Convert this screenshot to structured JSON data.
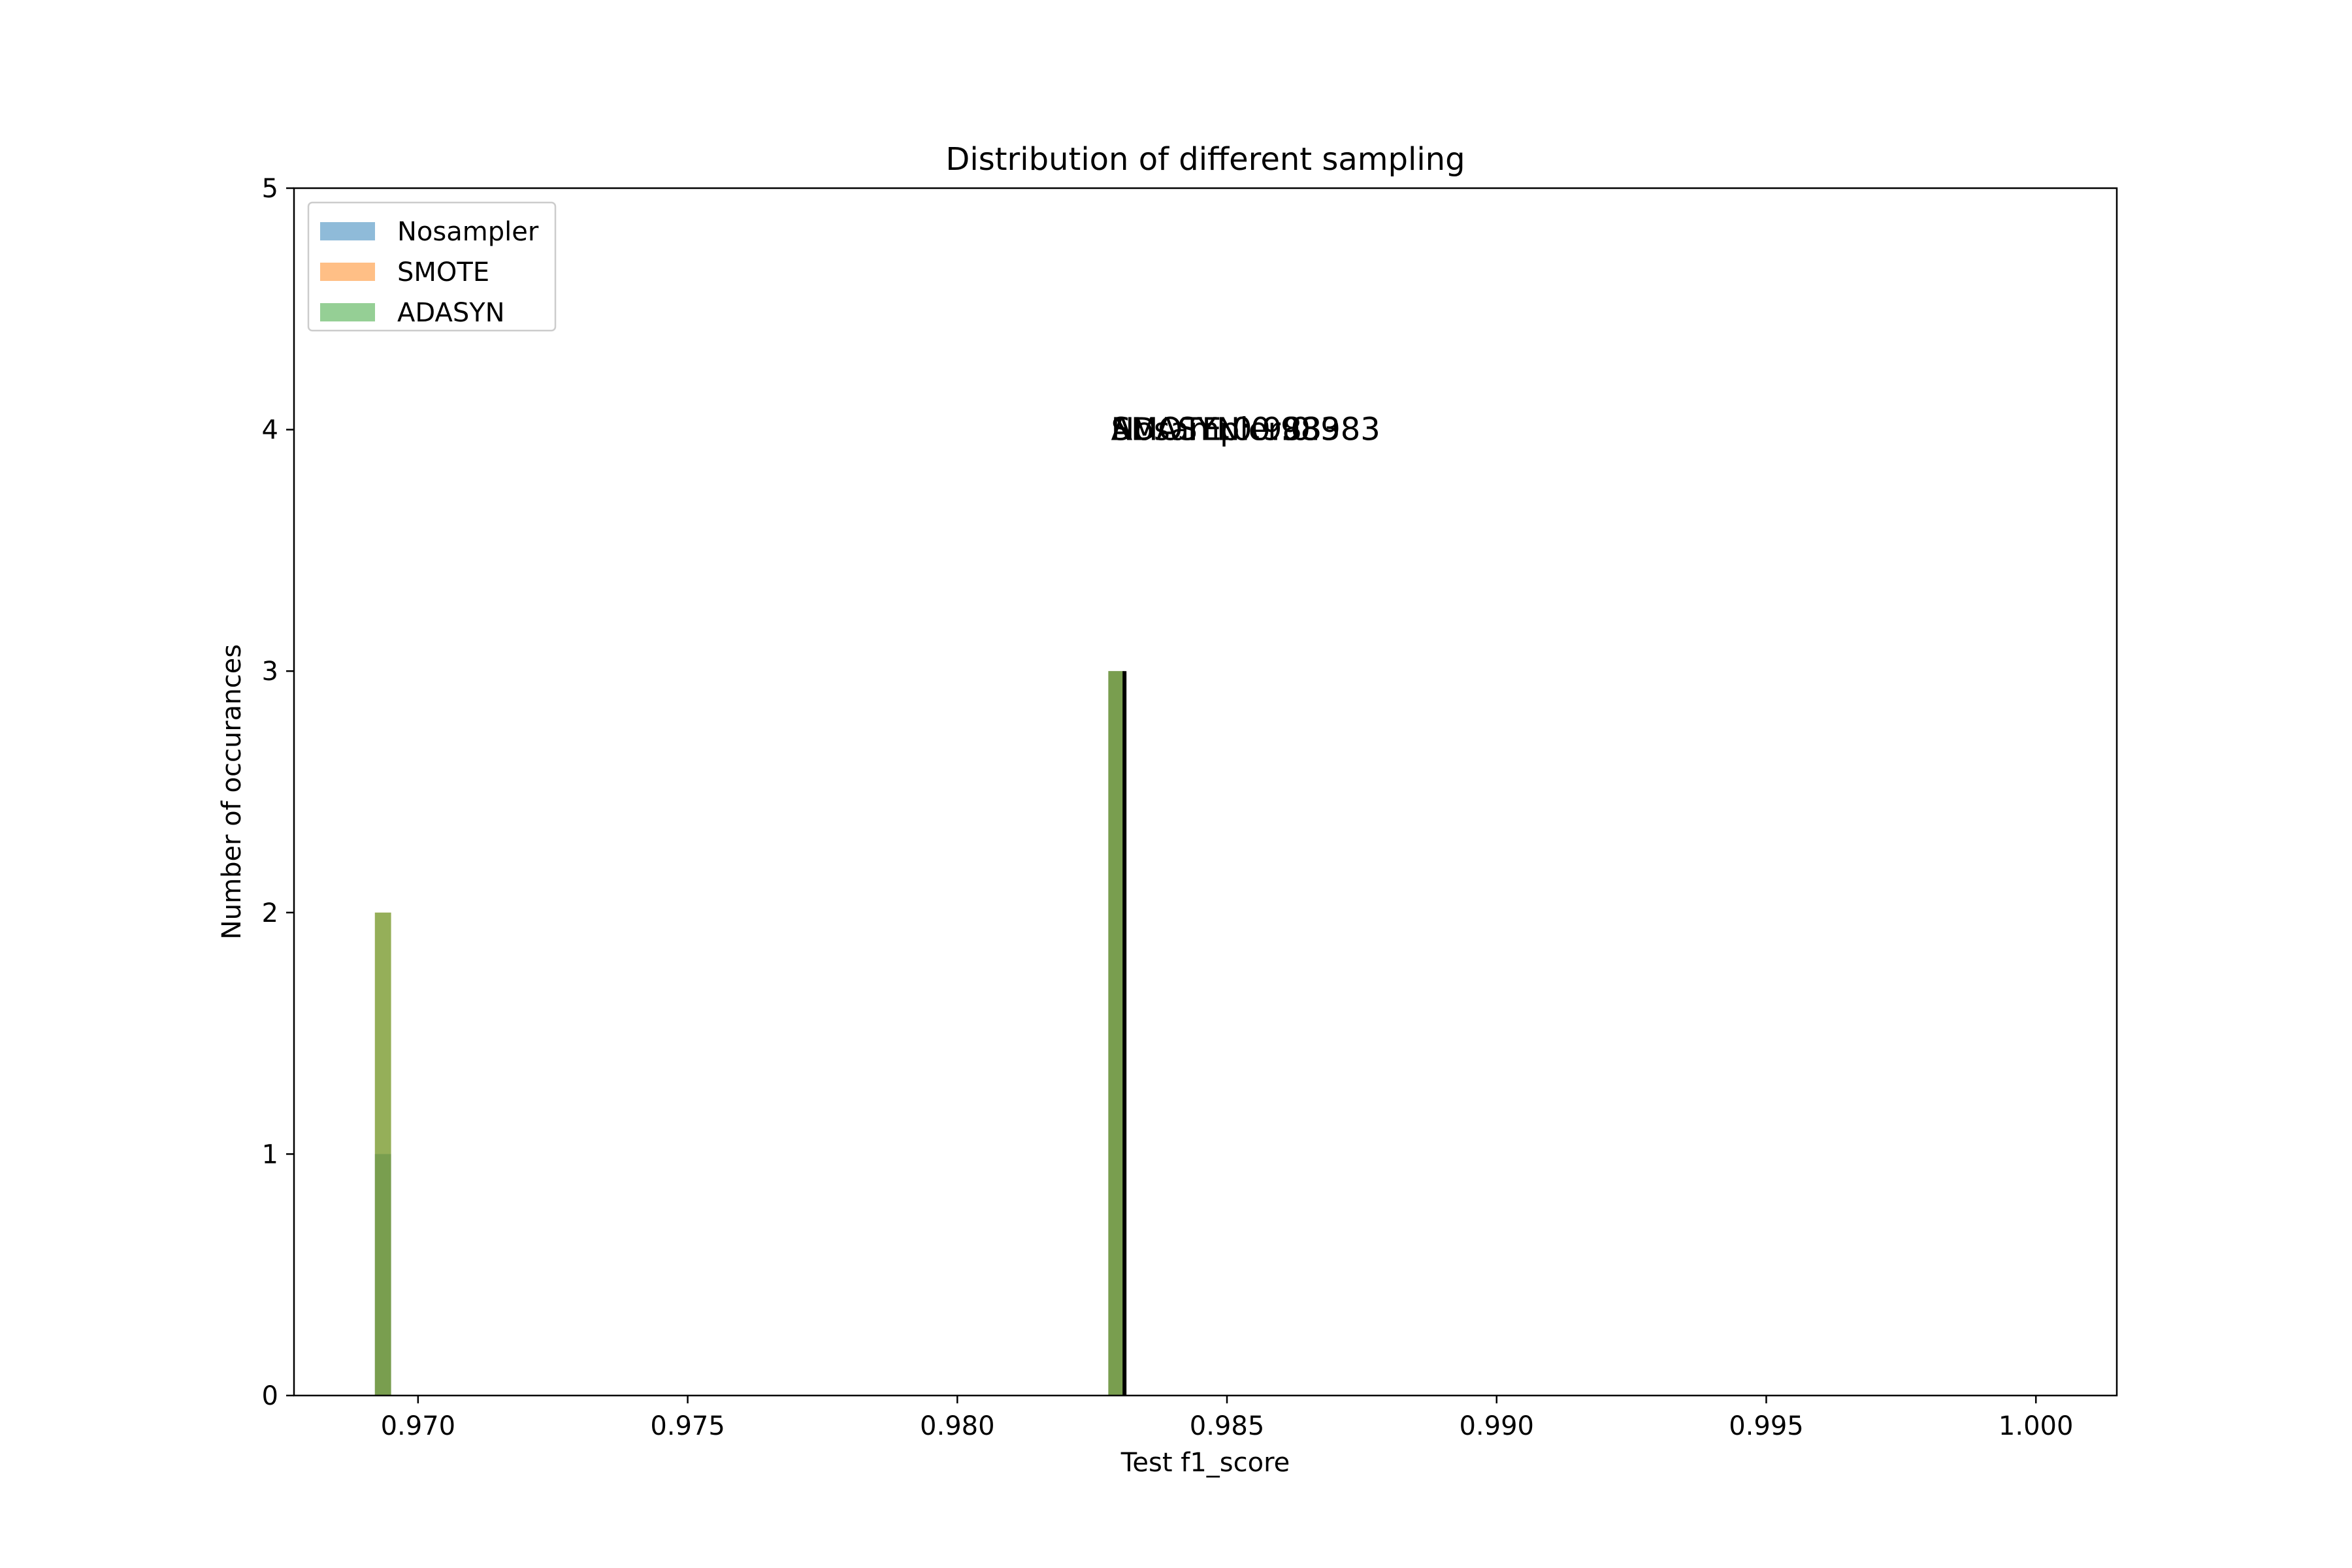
{
  "chart_data": {
    "type": "bar",
    "title": "Distribution of different sampling",
    "xlabel": "Test f1_score",
    "ylabel": "Number of occurances",
    "xlim": [
      0.9677,
      1.0015
    ],
    "ylim": [
      0,
      5
    ],
    "x_ticks": [
      "0.970",
      "0.975",
      "0.980",
      "0.985",
      "0.990",
      "0.995",
      "1.000"
    ],
    "y_ticks": [
      "0",
      "1",
      "2",
      "3",
      "4",
      "5"
    ],
    "grid": false,
    "legend_placement": "top-left",
    "bin_width": 0.0003,
    "series": [
      {
        "name": "Nosampler",
        "color": "#1f77b4",
        "opacity": 0.5,
        "bins": [
          {
            "x": 0.96935,
            "count": 1
          },
          {
            "x": 0.98295,
            "count": 3
          }
        ]
      },
      {
        "name": "SMOTE",
        "color": "#ff7f0e",
        "opacity": 0.5,
        "bins": [
          {
            "x": 0.96935,
            "count": 2
          },
          {
            "x": 0.98295,
            "count": 3
          }
        ]
      },
      {
        "name": "ADASYN",
        "color": "#2ca02c",
        "opacity": 0.5,
        "bins": [
          {
            "x": 0.96935,
            "count": 2
          },
          {
            "x": 0.98295,
            "count": 3
          }
        ]
      }
    ],
    "mean_lines": [
      {
        "x": 0.9831,
        "y_top": 3,
        "color": "#000000"
      }
    ],
    "annotations": [
      {
        "text": "ADASYN:0.983",
        "x": 0.98285,
        "y": 4.0
      },
      {
        "text": "SMOTE:0.983",
        "x": 0.98285,
        "y": 4.0
      },
      {
        "text": "Nosampler:0.983",
        "x": 0.98285,
        "y": 4.0
      }
    ]
  }
}
